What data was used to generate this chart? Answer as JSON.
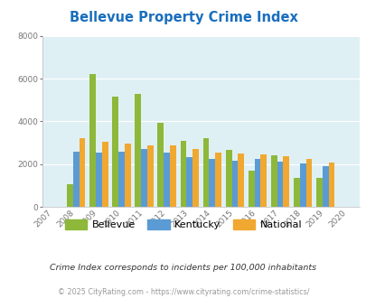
{
  "title": "Bellevue Property Crime Index",
  "years": [
    2007,
    2008,
    2009,
    2010,
    2011,
    2012,
    2013,
    2014,
    2015,
    2016,
    2017,
    2018,
    2019,
    2020
  ],
  "bellevue": [
    null,
    1050,
    6200,
    5150,
    5300,
    3950,
    3100,
    3200,
    2650,
    1700,
    2400,
    1350,
    1350,
    null
  ],
  "kentucky": [
    null,
    2580,
    2530,
    2580,
    2700,
    2560,
    2330,
    2250,
    2150,
    2250,
    2120,
    2020,
    1930,
    null
  ],
  "national": [
    null,
    3200,
    3050,
    2970,
    2880,
    2880,
    2700,
    2560,
    2520,
    2480,
    2380,
    2250,
    2100,
    null
  ],
  "bellevue_color": "#8db83a",
  "kentucky_color": "#5b9bd5",
  "national_color": "#f0a830",
  "bg_color": "#dff0f4",
  "grid_color": "#ffffff",
  "ylim": [
    0,
    8000
  ],
  "yticks": [
    0,
    2000,
    4000,
    6000,
    8000
  ],
  "title_color": "#1a6ebd",
  "subtitle": "Crime Index corresponds to incidents per 100,000 inhabitants",
  "footer": "© 2025 CityRating.com - https://www.cityrating.com/crime-statistics/",
  "legend_labels": [
    "Bellevue",
    "Kentucky",
    "National"
  ]
}
